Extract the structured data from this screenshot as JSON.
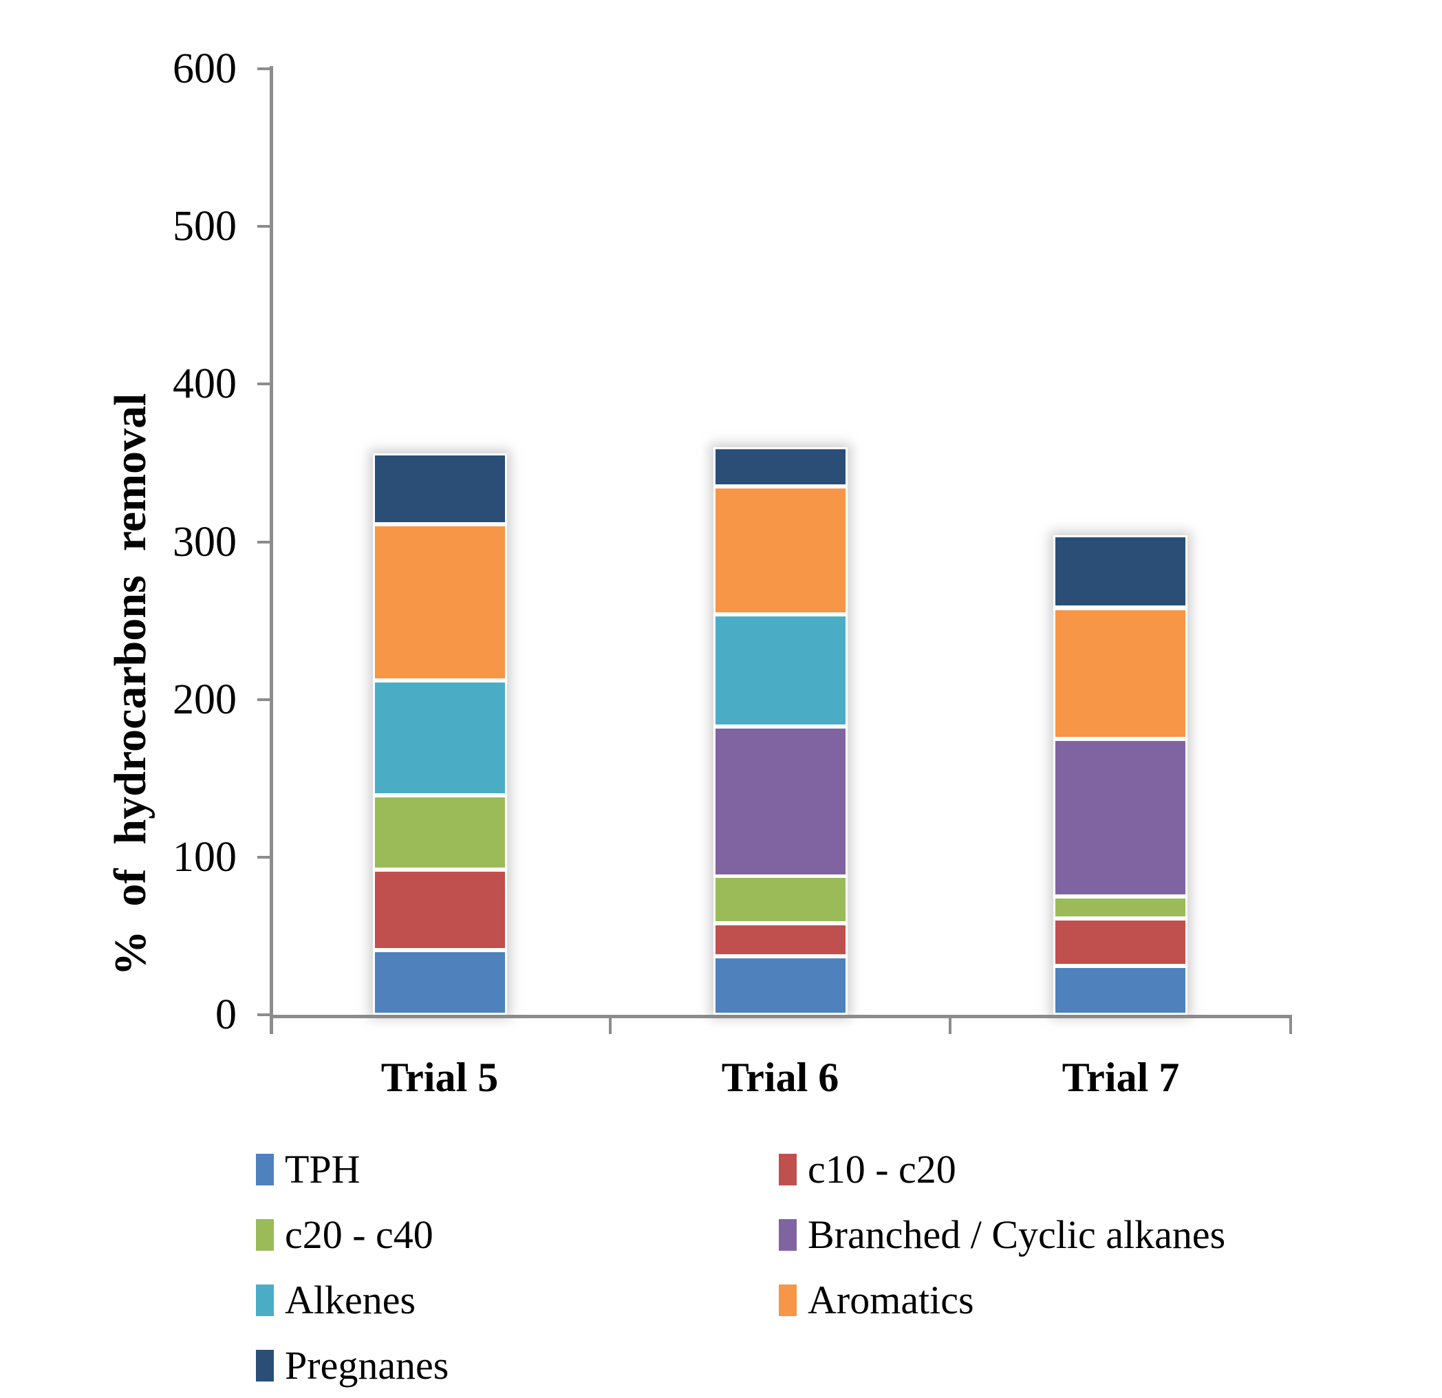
{
  "chart_data": {
    "type": "bar",
    "stacked": true,
    "title": "",
    "categories": [
      "Trial 5",
      "Trial 6",
      "Trial 7"
    ],
    "series": [
      {
        "name": "TPH",
        "color": "#4F81BD",
        "values": [
          41,
          37,
          31
        ]
      },
      {
        "name": "c10 - c20",
        "color": "#C0504D",
        "values": [
          51,
          21,
          30
        ]
      },
      {
        "name": "c20 - c40",
        "color": "#9BBB59",
        "values": [
          47,
          30,
          14
        ]
      },
      {
        "name": "Branched / Cyclic alkanes",
        "color": "#8064A2",
        "values": [
          0,
          95,
          100
        ]
      },
      {
        "name": "Alkenes",
        "color": "#4BACC6",
        "values": [
          73,
          71,
          0
        ]
      },
      {
        "name": "Aromatics",
        "color": "#F79646",
        "values": [
          99,
          81,
          83
        ]
      },
      {
        "name": "Pregnanes",
        "color": "#2A4E76",
        "values": [
          45,
          25,
          46
        ]
      }
    ],
    "totals": [
      356,
      360,
      304
    ],
    "xlabel": "",
    "ylabel": "% of hydrocarbons removal",
    "ylim": [
      0,
      600
    ],
    "yticks": [
      0,
      100,
      200,
      300,
      400,
      500,
      600
    ],
    "grid": false,
    "legend_position": "bottom",
    "legend_columns": [
      [
        0,
        2,
        4,
        6
      ],
      [
        1,
        3,
        5
      ]
    ],
    "axis_color": "#8C8C8C",
    "text_color": "#000000",
    "background_color": "#FFFFFF"
  }
}
